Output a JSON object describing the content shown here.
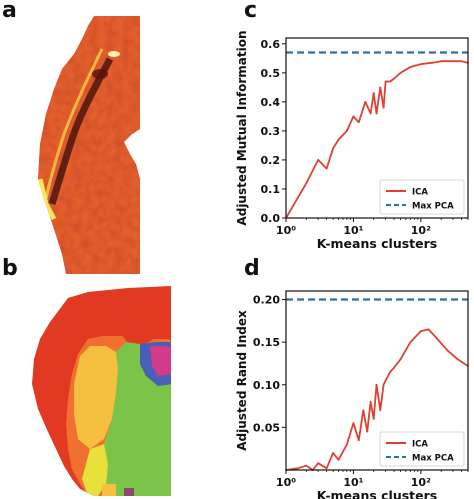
{
  "panels": {
    "a": {
      "letter": "a"
    },
    "b": {
      "letter": "b"
    },
    "c": {
      "letter": "c"
    },
    "d": {
      "letter": "d"
    }
  },
  "colors": {
    "ica": "#e04030",
    "max_pca": "#2f6fb0",
    "brain_red": "#e23a22",
    "brain_orange": "#f07030",
    "brain_yellow": "#f5c040",
    "brain_green": "#7cc34a",
    "brain_magenta": "#d23a8a",
    "brain_blue": "#4a5fb8"
  },
  "chart_data": [
    {
      "panel": "c",
      "type": "line",
      "xscale": "log",
      "xlim": [
        1,
        500
      ],
      "ylim": [
        0.0,
        0.62
      ],
      "xticks": [
        1,
        10,
        100
      ],
      "xtick_labels": [
        "10⁰",
        "10¹",
        "10²"
      ],
      "yticks": [
        0.0,
        0.1,
        0.2,
        0.3,
        0.4,
        0.5,
        0.6
      ],
      "ytick_labels": [
        "0.0",
        "0.1",
        "0.2",
        "0.3",
        "0.4",
        "0.5",
        "0.6"
      ],
      "xlabel": "K-means clusters",
      "ylabel": "Adjusted Mutual Information",
      "legend_position": "bottom-right",
      "grid": false,
      "series": [
        {
          "name": "ICA",
          "style": "solid",
          "x": [
            1,
            1.5,
            2,
            3,
            4,
            5,
            6,
            8,
            10,
            12,
            15,
            18,
            20,
            22,
            25,
            28,
            30,
            35,
            40,
            50,
            70,
            100,
            150,
            200,
            300,
            400,
            500
          ],
          "y": [
            0.0,
            0.07,
            0.12,
            0.2,
            0.17,
            0.24,
            0.27,
            0.3,
            0.35,
            0.33,
            0.4,
            0.36,
            0.43,
            0.36,
            0.45,
            0.38,
            0.47,
            0.47,
            0.48,
            0.5,
            0.52,
            0.53,
            0.535,
            0.54,
            0.54,
            0.54,
            0.535
          ]
        },
        {
          "name": "Max PCA",
          "style": "dashed",
          "y_constant": 0.57
        }
      ]
    },
    {
      "panel": "d",
      "type": "line",
      "xscale": "log",
      "xlim": [
        1,
        500
      ],
      "ylim": [
        0.0,
        0.21
      ],
      "xticks": [
        1,
        10,
        100
      ],
      "xtick_labels": [
        "10⁰",
        "10¹",
        "10²"
      ],
      "yticks": [
        0.05,
        0.1,
        0.15,
        0.2
      ],
      "ytick_labels": [
        "0.05",
        "0.10",
        "0.15",
        "0.20"
      ],
      "xlabel": "K-means clusters",
      "ylabel": "Adjusted Rand Index",
      "legend_position": "bottom-right",
      "grid": false,
      "series": [
        {
          "name": "ICA",
          "style": "solid",
          "x": [
            1,
            1.5,
            2,
            2.5,
            3,
            4,
            5,
            6,
            8,
            10,
            12,
            14,
            16,
            18,
            20,
            22,
            25,
            28,
            30,
            35,
            40,
            50,
            70,
            100,
            130,
            170,
            250,
            350,
            500
          ],
          "y": [
            0.0,
            0.002,
            0.005,
            0.0,
            0.008,
            0.002,
            0.02,
            0.012,
            0.03,
            0.055,
            0.035,
            0.07,
            0.045,
            0.08,
            0.06,
            0.1,
            0.07,
            0.1,
            0.105,
            0.115,
            0.12,
            0.13,
            0.15,
            0.163,
            0.165,
            0.155,
            0.14,
            0.13,
            0.122
          ]
        },
        {
          "name": "Max PCA",
          "style": "dashed",
          "y_constant": 0.2
        }
      ]
    }
  ]
}
